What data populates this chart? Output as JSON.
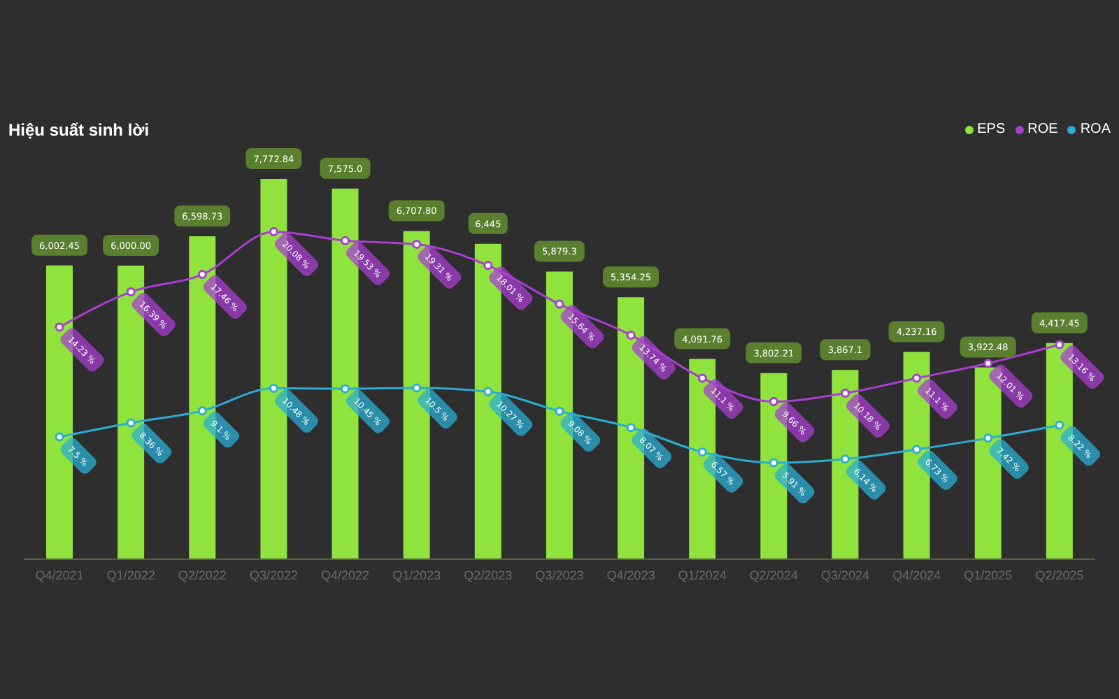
{
  "chart_data": {
    "type": "bar",
    "title": "Hiệu suất sinh lời",
    "categories": [
      "Q4/2021",
      "Q1/2022",
      "Q2/2022",
      "Q3/2022",
      "Q4/2022",
      "Q1/2023",
      "Q2/2023",
      "Q3/2023",
      "Q4/2023",
      "Q1/2024",
      "Q2/2024",
      "Q3/2024",
      "Q4/2024",
      "Q1/2025",
      "Q2/2025"
    ],
    "series": [
      {
        "name": "EPS",
        "color": "#8fe33c",
        "values": [
          6002.45,
          6000.0,
          6598.73,
          7772.84,
          7575.0,
          6707.8,
          6445,
          5879.3,
          5354.25,
          4091.76,
          3802.21,
          3867.1,
          4237.16,
          3922.48,
          4417.45
        ],
        "value_labels": [
          "6,002.45",
          "6,000.00",
          "6,598.73",
          "7,772.84",
          "7,575.0",
          "6,707.80",
          "6,445",
          "5,879.3",
          "5,354.25",
          "4,091.76",
          "3,802.21",
          "3,867.1",
          "4,237.16",
          "3,922.48",
          "4,417.45"
        ]
      },
      {
        "name": "ROE",
        "type": "line",
        "axis": "y2",
        "color": "#a83fd1",
        "values": [
          14.23,
          16.39,
          17.46,
          20.08,
          19.53,
          19.31,
          18.01,
          15.64,
          13.74,
          11.1,
          9.66,
          10.18,
          11.1,
          12.01,
          13.16
        ],
        "value_labels": [
          "14.23 %",
          "16.39 %",
          "17.46 %",
          "20.08 %",
          "19.53 %",
          "19.31 %",
          "18.01 %",
          "15.64 %",
          "13.74 %",
          "11.1 %",
          "9.66 %",
          "10.18 %",
          "11.1 %",
          "12.01 %",
          "13.16 %"
        ]
      },
      {
        "name": "ROA",
        "type": "line",
        "axis": "y2",
        "color": "#2aaed3",
        "values": [
          7.5,
          8.36,
          9.1,
          10.48,
          10.45,
          10.5,
          10.27,
          9.08,
          8.07,
          6.57,
          5.91,
          6.14,
          6.73,
          7.42,
          8.22
        ],
        "value_labels": [
          "7.5 %",
          "8.36 %",
          "9.1 %",
          "10.48 %",
          "10.45 %",
          "10.5 %",
          "10.27 %",
          "9.08 %",
          "8.07 %",
          "6.57 %",
          "5.91 %",
          "6.14 %",
          "6.73 %",
          "7.42 %",
          "8.22 %"
        ]
      }
    ],
    "tick_labels": "x",
    "legend": "top right",
    "marker": "circle",
    "line_style": "solid"
  }
}
